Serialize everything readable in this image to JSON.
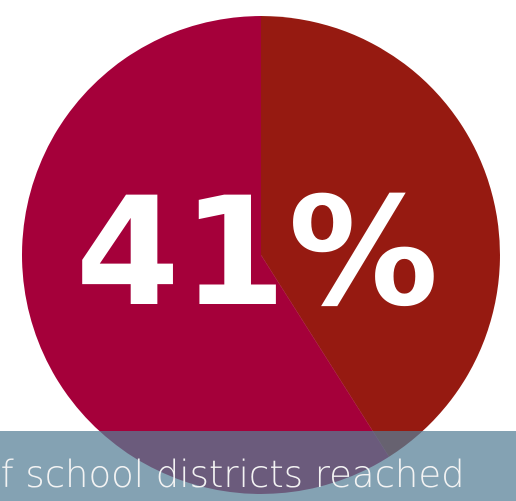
{
  "headline": {
    "value": "41%"
  },
  "caption": {
    "text": "of school districts reached"
  },
  "chart_data": {
    "type": "pie",
    "values": [
      41,
      59
    ],
    "colors": [
      "#961a11",
      "#a5003a"
    ],
    "title": "41%",
    "start_angle": "12 o'clock",
    "direction": "clockwise"
  }
}
